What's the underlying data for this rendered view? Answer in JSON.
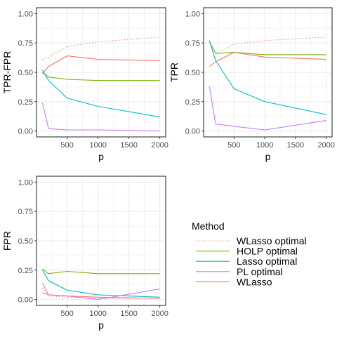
{
  "colors": {
    "wlasso_optimal": "#F8766D",
    "holp_optimal": "#7CAE00",
    "lasso_optimal": "#00BFC4",
    "pl_optimal": "#C77CFF",
    "wlasso": "#F8766D",
    "grid": "#EBEBEB",
    "panel_border": "#333333",
    "axis_text": "#4D4D4D"
  },
  "legend": {
    "title": "Method",
    "entries": [
      {
        "key": "wlasso_optimal",
        "label": "WLasso optimal",
        "dashed": true
      },
      {
        "key": "holp_optimal",
        "label": "HOLP optimal",
        "dashed": false
      },
      {
        "key": "lasso_optimal",
        "label": "Lasso optimal",
        "dashed": false
      },
      {
        "key": "pl_optimal",
        "label": "PL optimal",
        "dashed": false
      },
      {
        "key": "wlasso",
        "label": "WLasso",
        "dashed": false
      }
    ]
  },
  "chart_data": [
    {
      "type": "line",
      "xlabel": "p",
      "ylabel": "TPR-FPR",
      "xlim": [
        100,
        2000
      ],
      "ylim": [
        0,
        1
      ],
      "xticks": [
        "500",
        "1000",
        "1500",
        "2000"
      ],
      "yticks": [
        "0.00",
        "0.25",
        "0.50",
        "0.75",
        "1.00"
      ],
      "grid": true,
      "series": [
        {
          "key": "wlasso_optimal",
          "x": [
            100,
            200,
            500,
            1000,
            2000
          ],
          "y": [
            0.61,
            0.63,
            0.72,
            0.76,
            0.8
          ]
        },
        {
          "key": "holp_optimal",
          "x": [
            100,
            200,
            500,
            1000,
            2000
          ],
          "y": [
            0.5,
            0.46,
            0.44,
            0.43,
            0.43
          ]
        },
        {
          "key": "lasso_optimal",
          "x": [
            100,
            200,
            500,
            1000,
            2000
          ],
          "y": [
            0.52,
            0.43,
            0.28,
            0.21,
            0.12
          ]
        },
        {
          "key": "pl_optimal",
          "x": [
            100,
            200,
            500,
            1000,
            2000
          ],
          "y": [
            0.24,
            0.02,
            0.01,
            0.01,
            0.0
          ]
        },
        {
          "key": "wlasso",
          "x": [
            100,
            200,
            500,
            1000,
            2000
          ],
          "y": [
            0.49,
            0.55,
            0.64,
            0.61,
            0.6
          ]
        }
      ]
    },
    {
      "type": "line",
      "xlabel": "p",
      "ylabel": "TPR",
      "xlim": [
        100,
        2000
      ],
      "ylim": [
        0,
        1
      ],
      "xticks": [
        "500",
        "1000",
        "1500",
        "2000"
      ],
      "yticks": [
        "0.00",
        "0.25",
        "0.50",
        "0.75",
        "1.00"
      ],
      "grid": true,
      "series": [
        {
          "key": "wlasso_optimal",
          "x": [
            100,
            200,
            500,
            1000,
            2000
          ],
          "y": [
            0.76,
            0.66,
            0.74,
            0.77,
            0.8
          ]
        },
        {
          "key": "holp_optimal",
          "x": [
            100,
            200,
            500,
            1000,
            2000
          ],
          "y": [
            0.76,
            0.66,
            0.67,
            0.65,
            0.65
          ]
        },
        {
          "key": "lasso_optimal",
          "x": [
            100,
            200,
            500,
            1000,
            2000
          ],
          "y": [
            0.77,
            0.6,
            0.36,
            0.25,
            0.14
          ]
        },
        {
          "key": "pl_optimal",
          "x": [
            100,
            200,
            500,
            1000,
            2000
          ],
          "y": [
            0.38,
            0.06,
            0.04,
            0.01,
            0.09
          ]
        },
        {
          "key": "wlasso",
          "x": [
            100,
            200,
            500,
            1000,
            2000
          ],
          "y": [
            0.55,
            0.59,
            0.67,
            0.63,
            0.61
          ]
        }
      ]
    },
    {
      "type": "line",
      "xlabel": "p",
      "ylabel": "FPR",
      "xlim": [
        100,
        2000
      ],
      "ylim": [
        0,
        1
      ],
      "xticks": [
        "500",
        "1000",
        "1500",
        "2000"
      ],
      "yticks": [
        "0.00",
        "0.25",
        "0.50",
        "0.75",
        "1.00"
      ],
      "grid": true,
      "series": [
        {
          "key": "wlasso_optimal",
          "x": [
            100,
            200,
            500,
            1000,
            2000
          ],
          "y": [
            0.1,
            0.03,
            0.02,
            0.01,
            0.01
          ]
        },
        {
          "key": "holp_optimal",
          "x": [
            100,
            200,
            500,
            1000,
            2000
          ],
          "y": [
            0.26,
            0.22,
            0.24,
            0.22,
            0.22
          ]
        },
        {
          "key": "lasso_optimal",
          "x": [
            100,
            200,
            500,
            1000,
            2000
          ],
          "y": [
            0.25,
            0.16,
            0.08,
            0.04,
            0.02
          ]
        },
        {
          "key": "pl_optimal",
          "x": [
            100,
            200,
            500,
            1000,
            2000
          ],
          "y": [
            0.14,
            0.04,
            0.03,
            0.0,
            0.09
          ]
        },
        {
          "key": "wlasso",
          "x": [
            100,
            200,
            500,
            1000,
            2000
          ],
          "y": [
            0.06,
            0.04,
            0.03,
            0.02,
            0.01
          ]
        }
      ]
    }
  ]
}
